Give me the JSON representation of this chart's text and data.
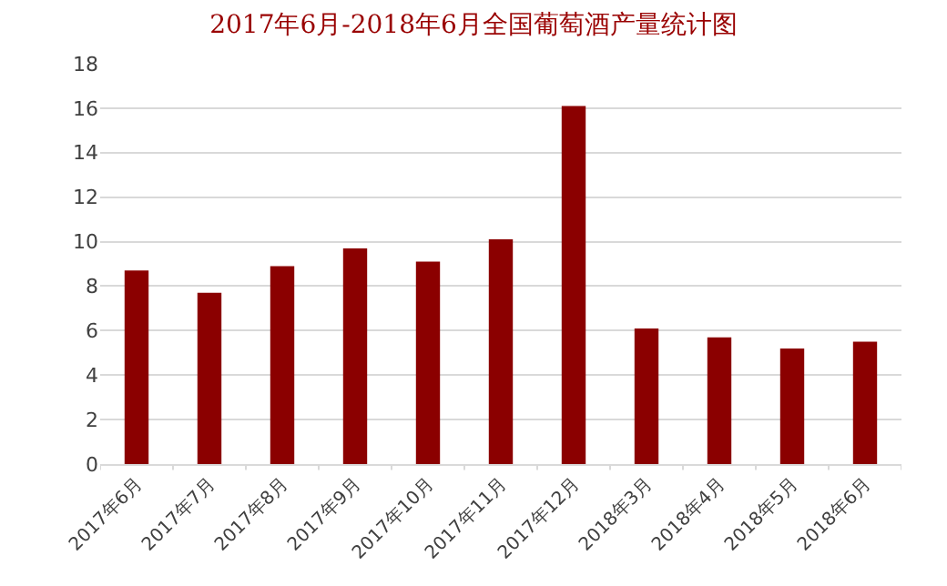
{
  "chart_data": {
    "type": "bar",
    "title": "2017年6月-2018年6月全国葡萄酒产量统计图",
    "categories": [
      "2017年6月",
      "2017年7月",
      "2017年8月",
      "2017年9月",
      "2017年10月",
      "2017年11月",
      "2017年12月",
      "2018年3月",
      "2018年4月",
      "2018年5月",
      "2018年6月"
    ],
    "values": [
      8.7,
      7.7,
      8.9,
      9.7,
      9.1,
      10.1,
      16.1,
      6.1,
      5.7,
      5.2,
      5.5
    ],
    "color": "#8b0000",
    "ylim": [
      0,
      18
    ],
    "yticks": [
      0,
      2,
      4,
      6,
      8,
      10,
      12,
      14,
      16,
      18
    ],
    "grid": "y"
  }
}
